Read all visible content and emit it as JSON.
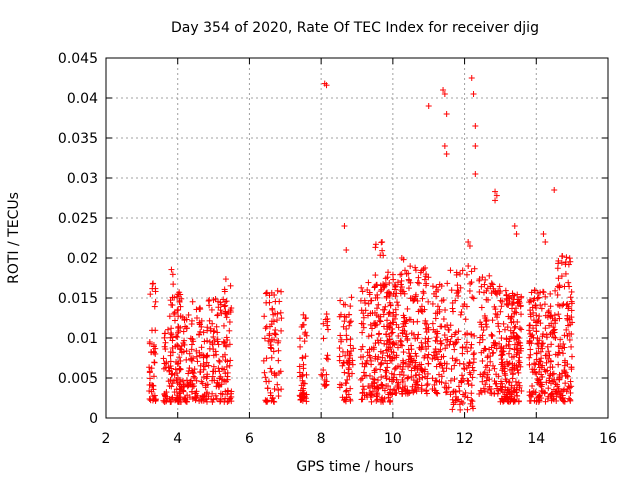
{
  "chart_data": {
    "type": "scatter",
    "title": "Day 354 of 2020, Rate Of TEC Index for receiver djig",
    "xlabel": "GPS time / hours",
    "ylabel": "ROTI / TECUs",
    "xlim": [
      2,
      16
    ],
    "ylim": [
      0,
      0.045
    ],
    "xticks": [
      2,
      4,
      6,
      8,
      10,
      12,
      14,
      16
    ],
    "yticks": [
      0,
      0.005,
      0.01,
      0.015,
      0.02,
      0.025,
      0.03,
      0.035,
      0.04,
      0.045
    ],
    "ytick_labels": [
      "0",
      "0.005",
      "0.01",
      "0.015",
      "0.02",
      "0.025",
      "0.03",
      "0.035",
      "0.04",
      "0.045"
    ],
    "grid": true,
    "marker": "+",
    "color": "#ff0000",
    "series": [
      {
        "name": "ROTI",
        "clusters": [
          {
            "x_range": [
              3.2,
              3.4
            ],
            "y_range": [
              0.002,
              0.017
            ],
            "count": 45
          },
          {
            "x_range": [
              3.6,
              4.4
            ],
            "y_range": [
              0.002,
              0.013
            ],
            "count": 170
          },
          {
            "x_range": [
              3.8,
              4.1
            ],
            "y_range": [
              0.013,
              0.019
            ],
            "count": 22
          },
          {
            "x_range": [
              4.4,
              5.5
            ],
            "y_range": [
              0.002,
              0.015
            ],
            "count": 200
          },
          {
            "x_range": [
              5.3,
              5.5
            ],
            "y_range": [
              0.013,
              0.018
            ],
            "count": 12
          },
          {
            "x_range": [
              6.4,
              6.9
            ],
            "y_range": [
              0.002,
              0.016
            ],
            "count": 80
          },
          {
            "x_range": [
              7.4,
              7.6
            ],
            "y_range": [
              0.002,
              0.013
            ],
            "count": 50
          },
          {
            "x_range": [
              8.0,
              8.2
            ],
            "y_range": [
              0.004,
              0.013
            ],
            "count": 22
          },
          {
            "x_range": [
              8.5,
              8.9
            ],
            "y_range": [
              0.002,
              0.016
            ],
            "count": 70
          },
          {
            "x_range": [
              9.1,
              10.0
            ],
            "y_range": [
              0.002,
              0.017
            ],
            "count": 220
          },
          {
            "x_range": [
              9.5,
              9.9
            ],
            "y_range": [
              0.015,
              0.022
            ],
            "count": 18
          },
          {
            "x_range": [
              10.0,
              11.0
            ],
            "y_range": [
              0.003,
              0.019
            ],
            "count": 240
          },
          {
            "x_range": [
              11.1,
              11.6
            ],
            "y_range": [
              0.003,
              0.017
            ],
            "count": 85
          },
          {
            "x_range": [
              11.6,
              12.3
            ],
            "y_range": [
              0.001,
              0.019
            ],
            "count": 120
          },
          {
            "x_range": [
              12.4,
              13.0
            ],
            "y_range": [
              0.003,
              0.018
            ],
            "count": 110
          },
          {
            "x_range": [
              13.0,
              13.6
            ],
            "y_range": [
              0.002,
              0.016
            ],
            "count": 200
          },
          {
            "x_range": [
              13.8,
              14.6
            ],
            "y_range": [
              0.002,
              0.016
            ],
            "count": 200
          },
          {
            "x_range": [
              14.6,
              15.0
            ],
            "y_range": [
              0.002,
              0.021
            ],
            "count": 110
          }
        ],
        "outliers": [
          [
            8.1,
            0.0418
          ],
          [
            8.15,
            0.0416
          ],
          [
            8.65,
            0.024
          ],
          [
            8.7,
            0.021
          ],
          [
            9.7,
            0.022
          ],
          [
            11.0,
            0.039
          ],
          [
            11.4,
            0.041
          ],
          [
            11.45,
            0.0405
          ],
          [
            11.5,
            0.038
          ],
          [
            11.45,
            0.034
          ],
          [
            11.5,
            0.033
          ],
          [
            12.2,
            0.0425
          ],
          [
            12.25,
            0.0405
          ],
          [
            12.3,
            0.0365
          ],
          [
            12.3,
            0.034
          ],
          [
            12.3,
            0.0305
          ],
          [
            12.85,
            0.0283
          ],
          [
            12.9,
            0.0278
          ],
          [
            12.85,
            0.0272
          ],
          [
            12.15,
            0.0215
          ],
          [
            12.1,
            0.022
          ],
          [
            13.4,
            0.024
          ],
          [
            13.45,
            0.023
          ],
          [
            14.5,
            0.0285
          ],
          [
            14.2,
            0.023
          ],
          [
            14.25,
            0.022
          ],
          [
            10.25,
            0.02
          ],
          [
            10.3,
            0.0198
          ]
        ]
      }
    ]
  }
}
